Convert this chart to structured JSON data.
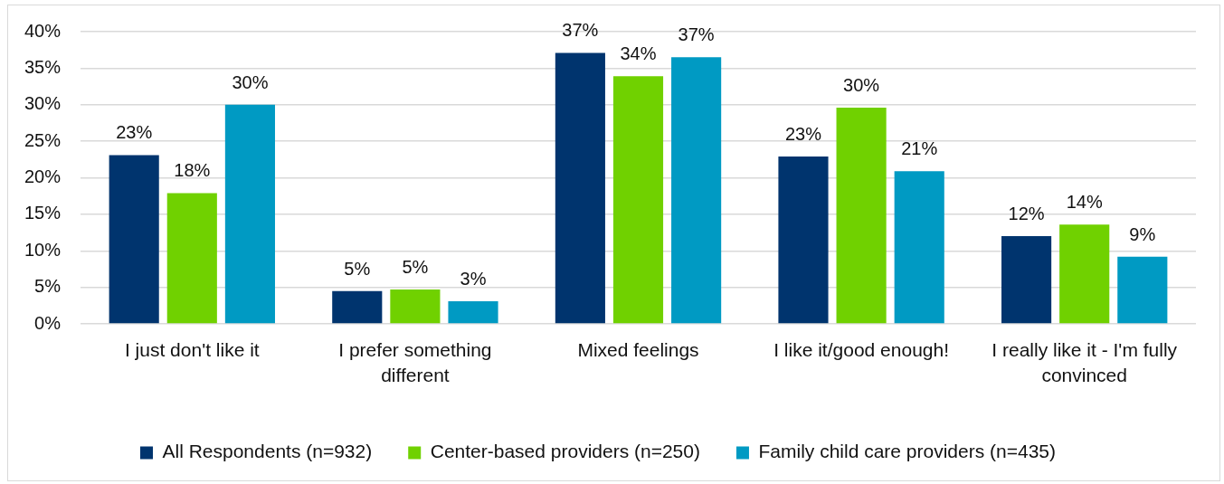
{
  "chart_data": {
    "type": "bar",
    "categories": [
      "I just don't like it",
      "I prefer something different",
      "Mixed feelings",
      "I like it/good enough!",
      "I really like it - I'm fully convinced"
    ],
    "series": [
      {
        "name": "All Respondents (n=932)",
        "color": "#00346e",
        "values": [
          23.1,
          4.5,
          37.1,
          22.9,
          12.0
        ],
        "value_labels": [
          "23%",
          "5%",
          "37%",
          "23%",
          "12%"
        ]
      },
      {
        "name": "Center-based providers (n=250)",
        "color": "#70d100",
        "values": [
          17.9,
          4.7,
          33.9,
          29.6,
          13.6
        ],
        "value_labels": [
          "18%",
          "5%",
          "34%",
          "30%",
          "14%"
        ]
      },
      {
        "name": "Family child care providers (n=435)",
        "color": "#009ac3",
        "values": [
          30.0,
          3.1,
          36.5,
          20.9,
          9.2
        ],
        "value_labels": [
          "30%",
          "3%",
          "37%",
          "21%",
          "9%"
        ]
      }
    ],
    "ylim": [
      0,
      40
    ],
    "yticks": [
      {
        "value": 0,
        "label": "0%"
      },
      {
        "value": 5,
        "label": "5%"
      },
      {
        "value": 10,
        "label": "10%"
      },
      {
        "value": 15,
        "label": "15%"
      },
      {
        "value": 20,
        "label": "20%"
      },
      {
        "value": 25,
        "label": "25%"
      },
      {
        "value": 30,
        "label": "30%"
      },
      {
        "value": 35,
        "label": "35%"
      },
      {
        "value": 40,
        "label": "40%"
      }
    ],
    "grid": "y",
    "legend": "bottom"
  }
}
